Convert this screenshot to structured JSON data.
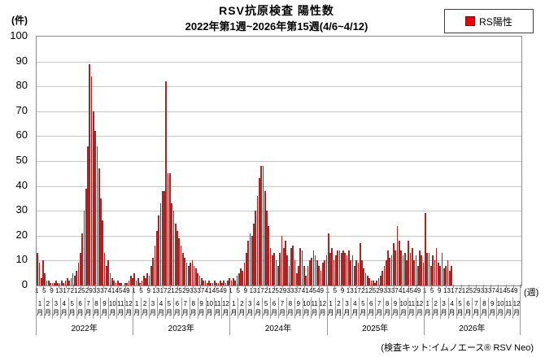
{
  "page": {
    "title": "RSV抗原検査 陽性数",
    "subtitle": "2022年第1週~2026年第15週(4/6~4/12)",
    "y_axis_unit": "(件)",
    "x_axis_unit": "(週)",
    "footnote": "(検査キット:イムノエース® RSV Neo)"
  },
  "legend": {
    "label": "RS陽性"
  },
  "colors": {
    "bar": "#a82525",
    "legend_marker": "#e8000d",
    "grid": "#c6c6c6",
    "axis": "#8a8a8a",
    "separator": "#9a9a9a"
  },
  "chart_data": {
    "type": "bar",
    "title": "RSV抗原検査 陽性数",
    "subtitle": "2022年第1週~2026年第15週(4/6~4/12)",
    "ylabel": "(件)",
    "xlabel": "(週)",
    "ylim": [
      0,
      100
    ],
    "ytick_step": 10,
    "yticks": [
      0,
      10,
      20,
      30,
      40,
      50,
      60,
      70,
      80,
      90,
      100
    ],
    "grid": true,
    "series_name": "RS陽性",
    "legend": {
      "label": "RS陽性",
      "position": "top-right"
    },
    "x_structure": {
      "weeks_per_year": 52,
      "week_tick_labels": [
        "1",
        "5",
        "9",
        "13",
        "17",
        "21",
        "25",
        "29",
        "33",
        "37",
        "41",
        "45",
        "49"
      ],
      "month_labels": [
        "1",
        "2",
        "3",
        "4",
        "5",
        "6",
        "7",
        "8",
        "9",
        "10",
        "11",
        "12"
      ],
      "month_suffix": "月"
    },
    "years": [
      {
        "label": "2022年",
        "values": [
          13,
          9,
          3,
          10,
          5,
          2,
          2,
          1,
          1,
          1,
          2,
          1,
          1,
          2,
          1,
          2,
          3,
          2,
          3,
          5,
          4,
          6,
          9,
          13,
          21,
          30,
          39,
          56,
          89,
          84,
          70,
          62,
          56,
          47,
          35,
          26,
          13,
          8,
          10,
          5,
          3,
          2,
          1,
          2,
          1,
          1,
          0,
          1,
          1,
          2,
          4,
          3
        ]
      },
      {
        "label": "2023年",
        "values": [
          5,
          2,
          3,
          1,
          2,
          4,
          3,
          5,
          4,
          8,
          11,
          16,
          22,
          28,
          33,
          38,
          38,
          82,
          45,
          45,
          33,
          30,
          25,
          22,
          19,
          16,
          13,
          11,
          9,
          8,
          9,
          10,
          8,
          7,
          5,
          4,
          3,
          2,
          2,
          1,
          2,
          1,
          1,
          2,
          1,
          1,
          2,
          1,
          2,
          1,
          2,
          3
        ]
      },
      {
        "label": "2024年",
        "values": [
          2,
          3,
          2,
          4,
          5,
          7,
          6,
          9,
          13,
          18,
          21,
          20,
          25,
          30,
          36,
          43,
          48,
          48,
          38,
          30,
          24,
          15,
          12,
          13,
          10,
          8,
          13,
          20,
          15,
          18,
          12,
          8,
          15,
          16,
          10,
          5,
          8,
          15,
          14,
          8,
          4,
          8,
          10,
          11,
          14,
          12,
          10,
          8,
          6,
          9,
          10,
          12
        ]
      },
      {
        "label": "2025年",
        "values": [
          21,
          13,
          15,
          10,
          12,
          14,
          14,
          13,
          14,
          13,
          12,
          14,
          10,
          12,
          8,
          10,
          9,
          17,
          10,
          7,
          5,
          4,
          3,
          2,
          2,
          1,
          2,
          3,
          4,
          6,
          8,
          10,
          14,
          11,
          12,
          17,
          14,
          24,
          18,
          14,
          12,
          13,
          10,
          18,
          13,
          15,
          10,
          12,
          8,
          14,
          12,
          9
        ]
      },
      {
        "label": "2026年",
        "values": [
          29,
          13,
          13,
          8,
          12,
          10,
          15,
          9,
          8,
          13,
          7,
          8,
          10,
          6,
          8
        ]
      }
    ]
  }
}
